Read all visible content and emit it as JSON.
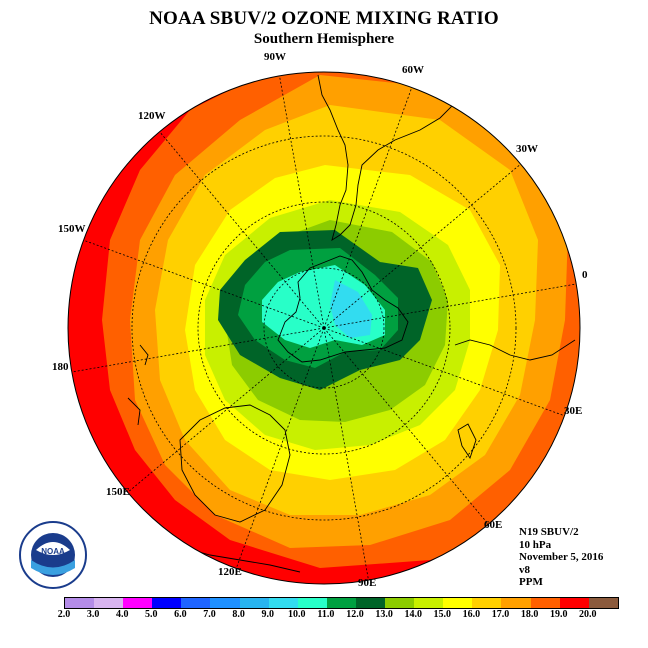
{
  "title": "NOAA SBUV/2 OZONE MIXING RATIO",
  "subtitle": "Southern Hemisphere",
  "longitude_labels": [
    "90W",
    "60W",
    "30W",
    "0",
    "30E",
    "60E",
    "90E",
    "120E",
    "150E",
    "180",
    "150W",
    "120W"
  ],
  "info": {
    "instrument": "N19 SBUV/2",
    "level": "10 hPa",
    "date": "November 5, 2016",
    "version": "v8",
    "units": "PPM"
  },
  "colorbar": {
    "tick_labels": [
      "2.0",
      "3.0",
      "4.0",
      "5.0",
      "6.0",
      "7.0",
      "8.0",
      "9.0",
      "10.0",
      "11.0",
      "12.0",
      "13.0",
      "14.0",
      "15.0",
      "16.0",
      "17.0",
      "18.0",
      "19.0",
      "20.0"
    ],
    "colors": [
      "#b48ce8",
      "#d8b4f0",
      "#ff00ff",
      "#0000ff",
      "#1e64ff",
      "#1e90ff",
      "#28b4f0",
      "#32dcf0",
      "#28ffc8",
      "#00a040",
      "#006428",
      "#8ccc00",
      "#c8f000",
      "#ffff00",
      "#ffd000",
      "#ffa000",
      "#ff6000",
      "#ff0000",
      "#8b5a3c"
    ]
  },
  "map_colors": {
    "level_brown": "#8b5a3c",
    "level_19": "#ff0000",
    "level_18": "#ff6000",
    "level_17": "#ffa000",
    "level_16": "#ffd000",
    "level_15": "#ffff00",
    "level_14": "#c8f000",
    "level_13": "#8ccc00",
    "level_12": "#006428",
    "level_11": "#00a040",
    "level_10": "#28ffc8",
    "level_9": "#32dcf0"
  },
  "logo": {
    "text": "NOAA",
    "ring_text": "NATIONAL OCEANIC AND ATMOSPHERIC ADMINISTRATION · U.S. DEPARTMENT OF COMMERCE"
  }
}
